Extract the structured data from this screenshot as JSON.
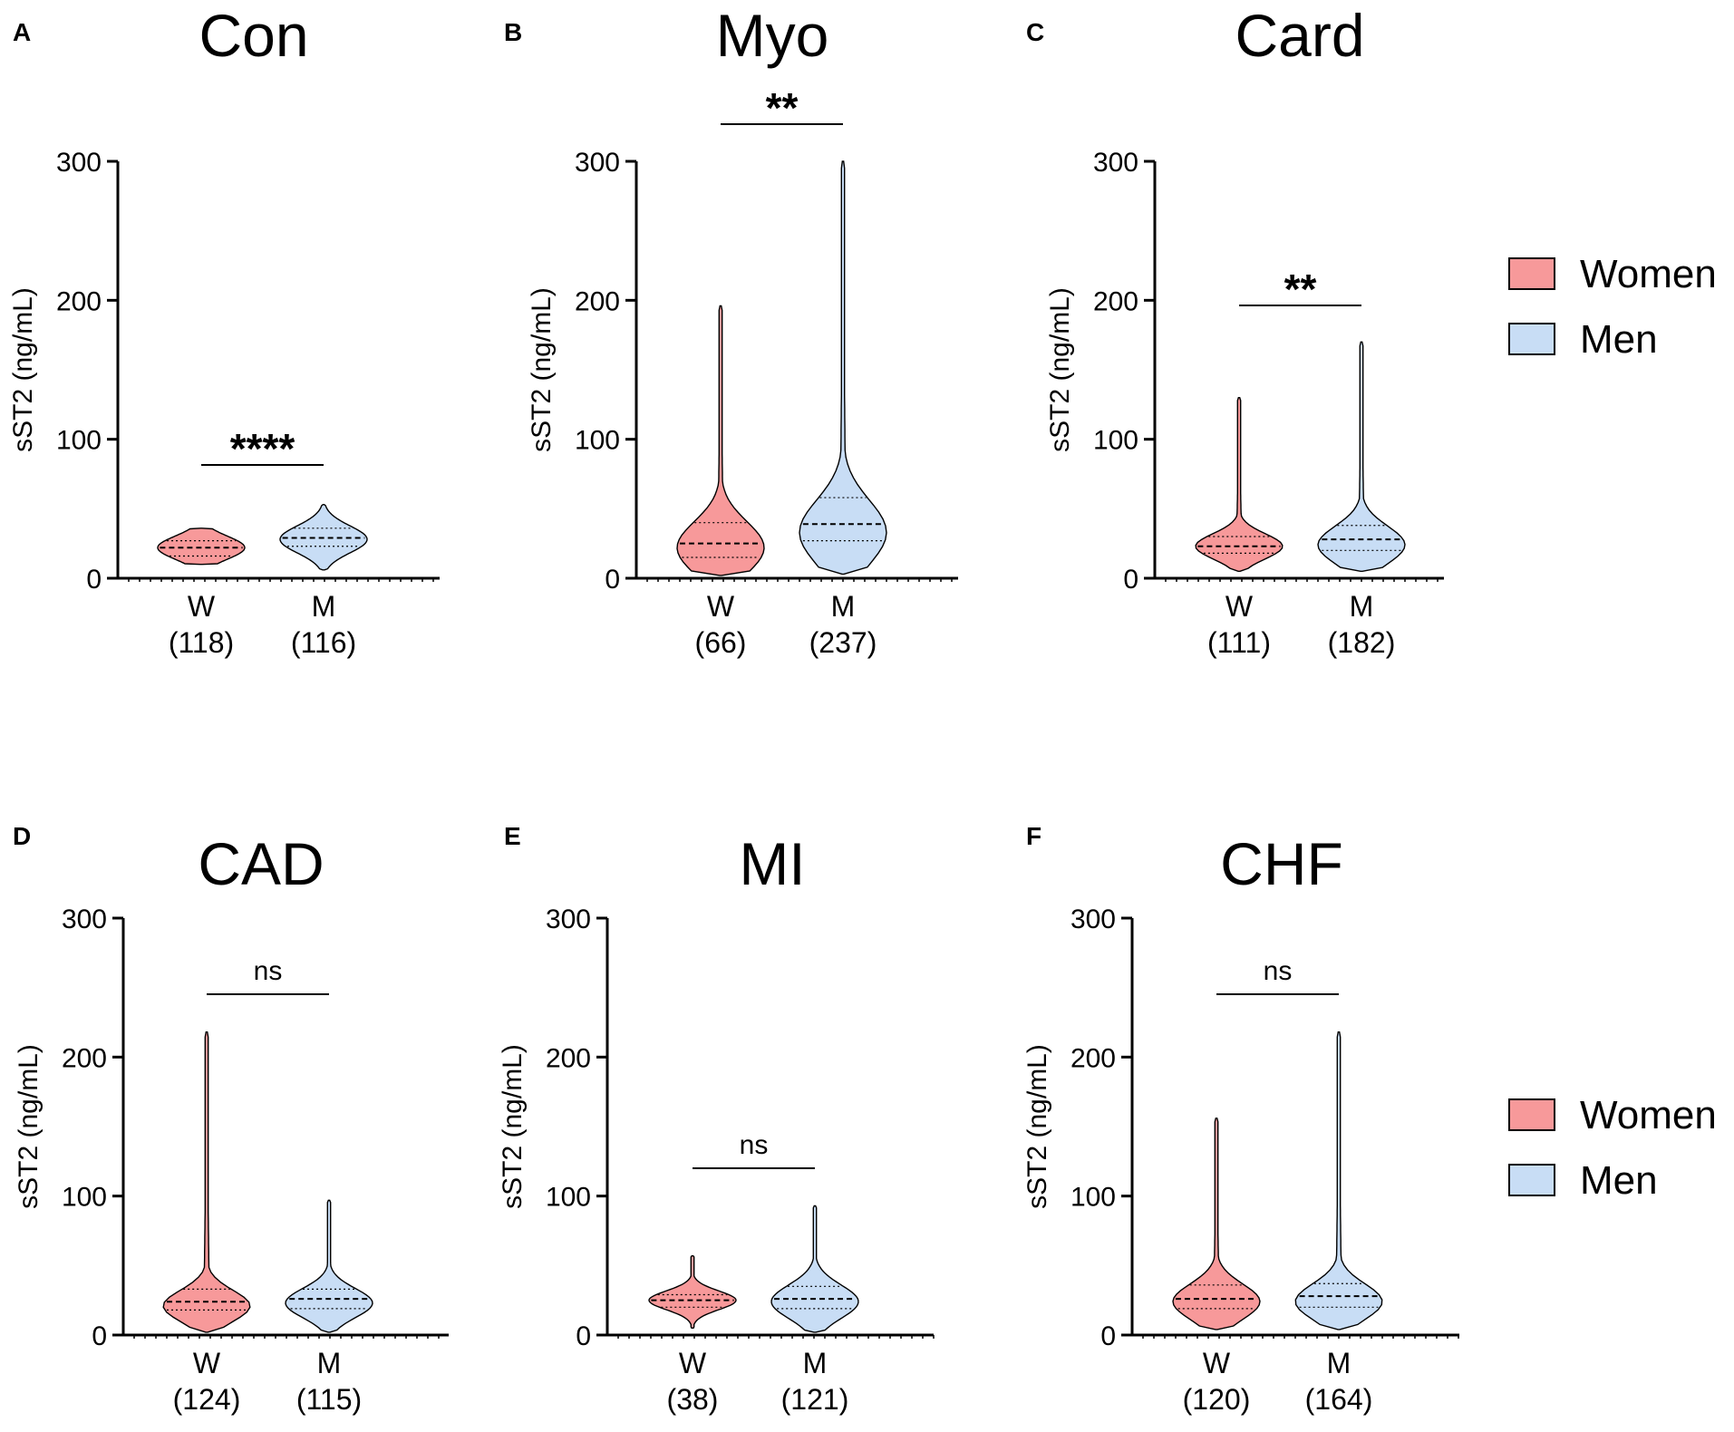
{
  "chart_data": [
    {
      "type": "violin",
      "panel": "A",
      "title": "Con",
      "ylabel": "sST2 (ng/mL)",
      "ylim": [
        0,
        300
      ],
      "yticks": [
        0,
        100,
        200,
        300
      ],
      "categories": [
        "W",
        "M"
      ],
      "n_labels": [
        "(118)",
        "(116)"
      ],
      "significance": "****",
      "series": [
        {
          "name": "Women",
          "min": 10,
          "q1": 16,
          "median": 22,
          "q3": 27,
          "max": 36,
          "mode": 22
        },
        {
          "name": "Men",
          "min": 6,
          "q1": 23,
          "median": 29,
          "q3": 36,
          "max": 53,
          "mode": 28
        }
      ]
    },
    {
      "type": "violin",
      "panel": "B",
      "title": "Myo",
      "ylabel": "sST2 (ng/mL)",
      "ylim": [
        0,
        300
      ],
      "yticks": [
        0,
        100,
        200,
        300
      ],
      "categories": [
        "W",
        "M"
      ],
      "n_labels": [
        "(66)",
        "(237)"
      ],
      "significance": "**",
      "series": [
        {
          "name": "Women",
          "min": 2,
          "q1": 15,
          "median": 25,
          "q3": 40,
          "max": 196,
          "mode": 22
        },
        {
          "name": "Men",
          "min": 3,
          "q1": 27,
          "median": 39,
          "q3": 58,
          "max": 300,
          "mode": 33
        }
      ]
    },
    {
      "type": "violin",
      "panel": "C",
      "title": "Card",
      "ylabel": "sST2 (ng/mL)",
      "ylim": [
        0,
        300
      ],
      "yticks": [
        0,
        100,
        200,
        300
      ],
      "categories": [
        "W",
        "M"
      ],
      "n_labels": [
        "(111)",
        "(182)"
      ],
      "significance": "**",
      "series": [
        {
          "name": "Women",
          "min": 5,
          "q1": 18,
          "median": 23,
          "q3": 30,
          "max": 130,
          "mode": 23
        },
        {
          "name": "Men",
          "min": 5,
          "q1": 20,
          "median": 28,
          "q3": 38,
          "max": 170,
          "mode": 24
        }
      ]
    },
    {
      "type": "violin",
      "panel": "D",
      "title": "CAD",
      "ylabel": "sST2 (ng/mL)",
      "ylim": [
        0,
        300
      ],
      "yticks": [
        0,
        100,
        200,
        300
      ],
      "categories": [
        "W",
        "M"
      ],
      "n_labels": [
        "(124)",
        "(115)"
      ],
      "significance": "ns",
      "series": [
        {
          "name": "Women",
          "min": 2,
          "q1": 18,
          "median": 24,
          "q3": 33,
          "max": 218,
          "mode": 21
        },
        {
          "name": "Men",
          "min": 2,
          "q1": 19,
          "median": 26,
          "q3": 33,
          "max": 97,
          "mode": 23
        }
      ]
    },
    {
      "type": "violin",
      "panel": "E",
      "title": "MI",
      "ylabel": "sST2 (ng/mL)",
      "ylim": [
        0,
        300
      ],
      "yticks": [
        0,
        100,
        200,
        300
      ],
      "categories": [
        "W",
        "M"
      ],
      "n_labels": [
        "(38)",
        "(121)"
      ],
      "significance": "ns",
      "series": [
        {
          "name": "Women",
          "min": 5,
          "q1": 20,
          "median": 25,
          "q3": 29,
          "max": 57,
          "mode": 25
        },
        {
          "name": "Men",
          "min": 2,
          "q1": 19,
          "median": 26,
          "q3": 35,
          "max": 93,
          "mode": 24
        }
      ]
    },
    {
      "type": "violin",
      "panel": "F",
      "title": "CHF",
      "ylabel": "sST2 (ng/mL)",
      "ylim": [
        0,
        300
      ],
      "yticks": [
        0,
        100,
        200,
        300
      ],
      "categories": [
        "W",
        "M"
      ],
      "n_labels": [
        "(120)",
        "(164)"
      ],
      "significance": "ns",
      "series": [
        {
          "name": "Women",
          "min": 4,
          "q1": 19,
          "median": 26,
          "q3": 36,
          "max": 156,
          "mode": 24
        },
        {
          "name": "Men",
          "min": 4,
          "q1": 20,
          "median": 28,
          "q3": 37,
          "max": 218,
          "mode": 24
        }
      ]
    }
  ],
  "legend": {
    "items": [
      {
        "label": "Women",
        "color": "#f7999a"
      },
      {
        "label": "Men",
        "color": "#c8ddf5"
      }
    ]
  },
  "colors": {
    "women_fill": "#f7999a",
    "men_fill": "#c8ddf5",
    "outline": "#000000"
  }
}
